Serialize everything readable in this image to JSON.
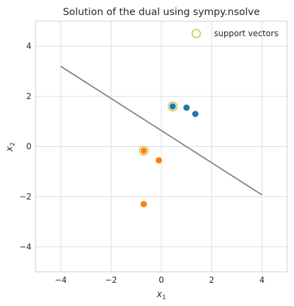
{
  "chart_data": {
    "type": "scatter",
    "title": "Solution of the dual using sympy.nsolve",
    "xlabel": "x",
    "xlabel_sub": "1",
    "ylabel": "x",
    "ylabel_sub": "2",
    "xlim": [
      -5,
      5
    ],
    "ylim": [
      -5,
      5
    ],
    "xticks": [
      -4,
      -2,
      0,
      2,
      4
    ],
    "yticks": [
      -4,
      -2,
      0,
      2,
      4
    ],
    "xtick_labels": [
      "−4",
      "−2",
      "0",
      "2",
      "4"
    ],
    "ytick_labels": [
      "−4",
      "−2",
      "0",
      "2",
      "4"
    ],
    "grid": true,
    "legend_position": "top-right",
    "series": [
      {
        "color": "#1f77b4",
        "points": [
          [
            0.45,
            1.6
          ],
          [
            1.0,
            1.55
          ],
          [
            1.35,
            1.3
          ]
        ]
      },
      {
        "color": "#ff7f0e",
        "points": [
          [
            -0.7,
            -0.17
          ],
          [
            -0.1,
            -0.55
          ],
          [
            -0.7,
            -2.3
          ]
        ]
      }
    ],
    "support_vectors": {
      "name": "support vectors",
      "color": "#bcbd22",
      "points": [
        [
          0.45,
          1.6
        ],
        [
          -0.7,
          -0.17
        ]
      ]
    },
    "decision_line": {
      "color": "#7f7f7f",
      "points": [
        [
          -4,
          3.2
        ],
        [
          4,
          -1.93
        ]
      ]
    }
  }
}
